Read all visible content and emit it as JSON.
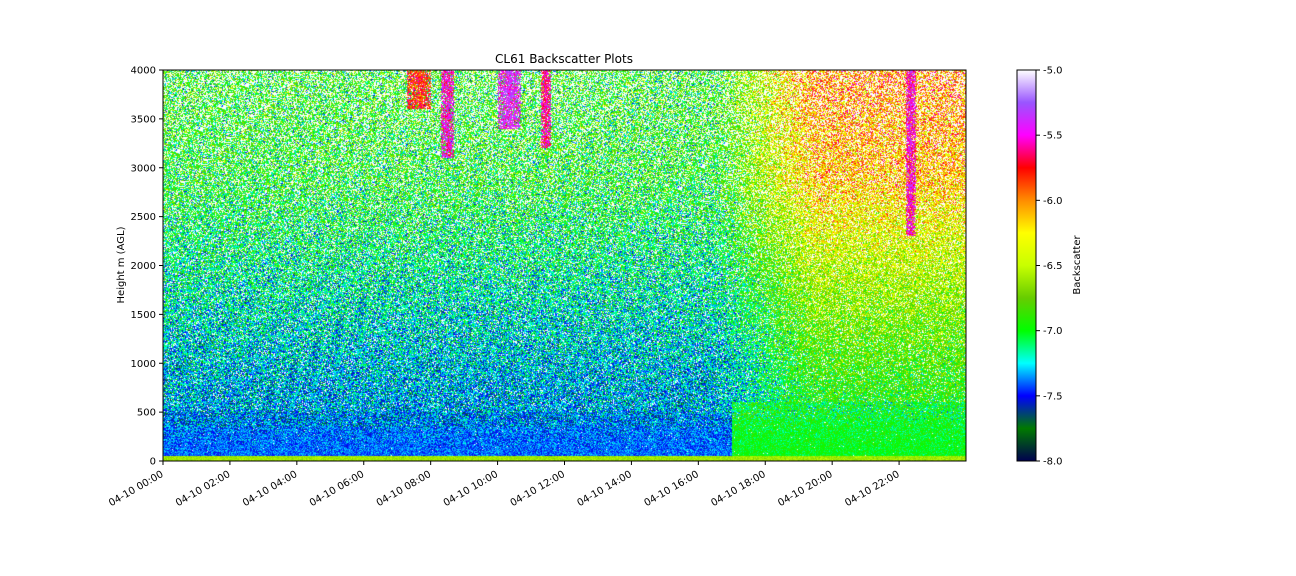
{
  "chart_data": {
    "type": "heatmap",
    "title": "CL61 Backscatter Plots",
    "ylabel": "Height m (AGL)",
    "xlabel": "",
    "x_ticks": [
      "04-10 00:00",
      "04-10 02:00",
      "04-10 04:00",
      "04-10 06:00",
      "04-10 08:00",
      "04-10 10:00",
      "04-10 12:00",
      "04-10 14:00",
      "04-10 16:00",
      "04-10 18:00",
      "04-10 20:00",
      "04-10 22:00"
    ],
    "x_range_hours": [
      0,
      24
    ],
    "y_ticks": [
      0,
      500,
      1000,
      1500,
      2000,
      2500,
      3000,
      3500,
      4000
    ],
    "ylim": [
      0,
      4000
    ],
    "colorbar": {
      "label": "Backscatter",
      "range": [
        -8.0,
        -5.0
      ],
      "ticks": [
        "-5.0",
        "-5.5",
        "-6.0",
        "-6.5",
        "-7.0",
        "-7.5",
        "-8.0"
      ],
      "colormap": [
        "#00004f",
        "#007a00",
        "#0000ff",
        "#00ffff",
        "#00ff00",
        "#66cc00",
        "#c8ff00",
        "#ffff00",
        "#ff8c00",
        "#ff0000",
        "#ff00ff",
        "#9955ff",
        "#ffffff"
      ]
    },
    "features": [
      {
        "kind": "near-surface layer",
        "start_hour": 0,
        "end_hour": 24,
        "height_top": 50,
        "value": -6.6
      },
      {
        "kind": "boundary layer",
        "start_hour": 0,
        "end_hour": 17,
        "height_top": 500,
        "value": -7.4
      },
      {
        "kind": "boundary layer",
        "start_hour": 17,
        "end_hour": 24,
        "height_top": 600,
        "value": -7.0
      },
      {
        "kind": "cloud",
        "start_hour": 7.3,
        "end_hour": 8.0,
        "height_bottom": 3600,
        "value": -5.8
      },
      {
        "kind": "cloud",
        "start_hour": 8.3,
        "end_hour": 8.7,
        "height_bottom": 3100,
        "value": -5.5
      },
      {
        "kind": "cloud",
        "start_hour": 10.0,
        "end_hour": 10.7,
        "height_bottom": 3400,
        "value": -5.4
      },
      {
        "kind": "cloud",
        "start_hour": 11.3,
        "end_hour": 11.6,
        "height_bottom": 3200,
        "value": -5.6
      },
      {
        "kind": "cloud",
        "start_hour": 22.2,
        "end_hour": 22.5,
        "height_bottom": 2300,
        "value": -5.5
      }
    ]
  }
}
